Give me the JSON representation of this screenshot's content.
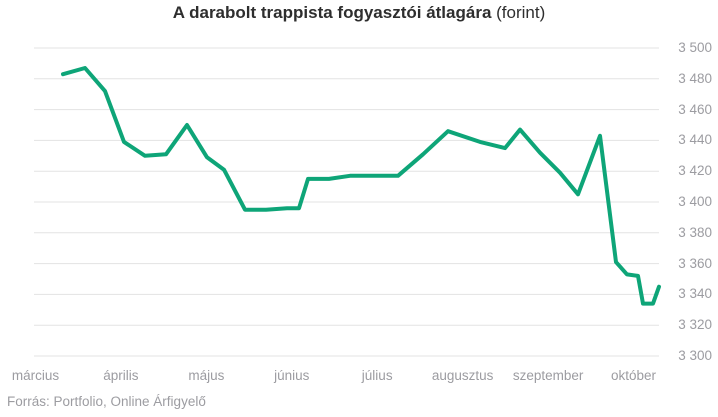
{
  "title": {
    "main": "A darabolt trappista fogyasztói átlagára",
    "suffix": " (forint)"
  },
  "source_note": "Forrás: Portfolio, Online Árfigyelő",
  "colors": {
    "line": "#0ea578",
    "grid": "#e3e3e3",
    "axis_text": "#9c9ca1",
    "title_text": "#2e2e2e"
  },
  "chart_data": {
    "type": "line",
    "title": "A darabolt trappista fogyasztói átlagára (forint)",
    "unit": "forint",
    "series_name": "darabolt trappista fogyasztói átlagár",
    "legend": false,
    "grid": true,
    "x_labels": [
      "március",
      "április",
      "május",
      "június",
      "július",
      "augusztus",
      "szeptember",
      "október"
    ],
    "y_range": [
      3300,
      3500
    ],
    "y_step": 20,
    "y_ticks": [
      {
        "value": 3500,
        "label": "3 500"
      },
      {
        "value": 3480,
        "label": "3 480"
      },
      {
        "value": 3460,
        "label": "3 460"
      },
      {
        "value": 3440,
        "label": "3 440"
      },
      {
        "value": 3420,
        "label": "3 420"
      },
      {
        "value": 3400,
        "label": "3 400"
      },
      {
        "value": 3380,
        "label": "3 380"
      },
      {
        "value": 3360,
        "label": "3 360"
      },
      {
        "value": 3340,
        "label": "3 340"
      },
      {
        "value": 3320,
        "label": "3 320"
      },
      {
        "value": 3300,
        "label": "3 300"
      }
    ],
    "points": [
      [
        63,
        3483
      ],
      [
        85,
        3487
      ],
      [
        105,
        3472
      ],
      [
        124,
        3439
      ],
      [
        145,
        3430
      ],
      [
        166,
        3431
      ],
      [
        187,
        3450
      ],
      [
        207,
        3429
      ],
      [
        224,
        3421
      ],
      [
        245,
        3395
      ],
      [
        266,
        3395
      ],
      [
        287,
        3396
      ],
      [
        299,
        3396
      ],
      [
        308,
        3415
      ],
      [
        329,
        3415
      ],
      [
        350,
        3417
      ],
      [
        371,
        3417
      ],
      [
        398,
        3417
      ],
      [
        423,
        3431
      ],
      [
        448,
        3446
      ],
      [
        480,
        3439
      ],
      [
        505,
        3435
      ],
      [
        520,
        3447
      ],
      [
        540,
        3432
      ],
      [
        560,
        3419
      ],
      [
        578,
        3405
      ],
      [
        600,
        3443
      ],
      [
        616,
        3361
      ],
      [
        627,
        3353
      ],
      [
        638,
        3352
      ],
      [
        643,
        3334
      ],
      [
        653,
        3334
      ],
      [
        659,
        3345
      ]
    ]
  }
}
